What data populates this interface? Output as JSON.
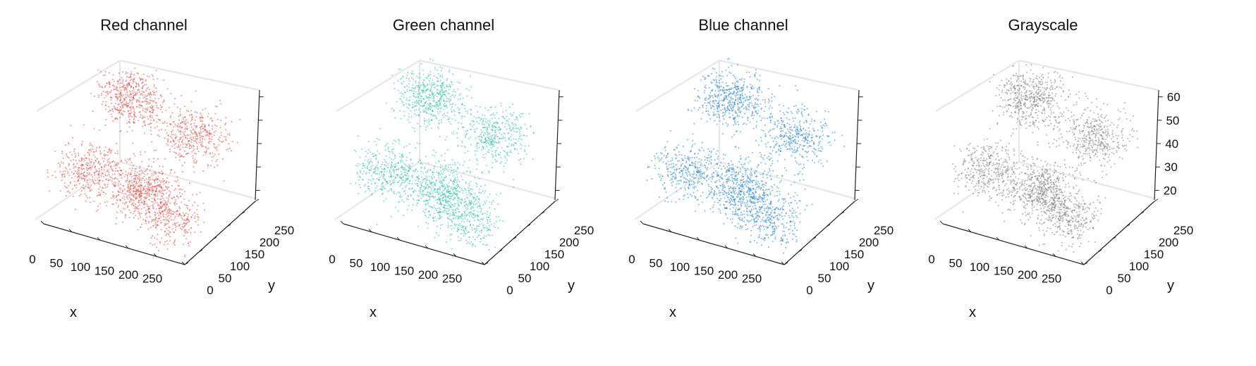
{
  "figure": {
    "panels": [
      {
        "title": "Red channel",
        "color": "#d9534f",
        "xlabel": "x",
        "ylabel": "y",
        "show_z_ticks": false
      },
      {
        "title": "Green channel",
        "color": "#3cbfa8",
        "xlabel": "x",
        "ylabel": "y",
        "show_z_ticks": false
      },
      {
        "title": "Blue channel",
        "color": "#2f86c6",
        "xlabel": "x",
        "ylabel": "y",
        "show_z_ticks": false
      },
      {
        "title": "Grayscale",
        "color": "#808080",
        "xlabel": "x",
        "ylabel": "y",
        "show_z_ticks": true
      }
    ],
    "x_ticks": [
      "0",
      "50",
      "100",
      "150",
      "200",
      "250"
    ],
    "y_ticks": [
      "0",
      "50",
      "100",
      "150",
      "200",
      "250"
    ],
    "z_ticks": [
      "20",
      "30",
      "40",
      "50",
      "60"
    ]
  },
  "chart_data": [
    {
      "type": "scatter",
      "title": "Red channel",
      "xlabel": "x",
      "ylabel": "y",
      "zlabel": "",
      "xlim": [
        0,
        280
      ],
      "ylim": [
        0,
        280
      ],
      "zlim": [
        15,
        62
      ],
      "point_color": "#d9534f",
      "point_count": 4000,
      "clusters": [
        {
          "x": 70,
          "y": 210,
          "z": 52,
          "n": 520
        },
        {
          "x": 200,
          "y": 200,
          "z": 45,
          "n": 420
        },
        {
          "x": 150,
          "y": 90,
          "z": 30,
          "n": 560
        },
        {
          "x": 60,
          "y": 60,
          "z": 35,
          "n": 380
        },
        {
          "x": 230,
          "y": 40,
          "z": 28,
          "n": 340
        }
      ],
      "grid": true
    },
    {
      "type": "scatter",
      "title": "Green channel",
      "xlabel": "x",
      "ylabel": "y",
      "zlabel": "",
      "xlim": [
        0,
        280
      ],
      "ylim": [
        0,
        280
      ],
      "zlim": [
        15,
        62
      ],
      "point_color": "#3cbfa8",
      "point_count": 4000,
      "clusters": [
        {
          "x": 70,
          "y": 210,
          "z": 52,
          "n": 520
        },
        {
          "x": 200,
          "y": 200,
          "z": 45,
          "n": 420
        },
        {
          "x": 150,
          "y": 90,
          "z": 30,
          "n": 560
        },
        {
          "x": 60,
          "y": 60,
          "z": 35,
          "n": 380
        },
        {
          "x": 230,
          "y": 40,
          "z": 28,
          "n": 340
        }
      ],
      "grid": true
    },
    {
      "type": "scatter",
      "title": "Blue channel",
      "xlabel": "x",
      "ylabel": "y",
      "zlabel": "",
      "xlim": [
        0,
        280
      ],
      "ylim": [
        0,
        280
      ],
      "zlim": [
        15,
        62
      ],
      "point_color": "#2f86c6",
      "point_count": 4000,
      "clusters": [
        {
          "x": 70,
          "y": 210,
          "z": 52,
          "n": 520
        },
        {
          "x": 200,
          "y": 200,
          "z": 45,
          "n": 420
        },
        {
          "x": 150,
          "y": 90,
          "z": 30,
          "n": 560
        },
        {
          "x": 60,
          "y": 60,
          "z": 35,
          "n": 380
        },
        {
          "x": 230,
          "y": 40,
          "z": 28,
          "n": 340
        }
      ],
      "grid": true
    },
    {
      "type": "scatter",
      "title": "Grayscale",
      "xlabel": "x",
      "ylabel": "y",
      "zlabel": "",
      "xlim": [
        0,
        280
      ],
      "ylim": [
        0,
        280
      ],
      "zlim": [
        15,
        62
      ],
      "point_color": "#808080",
      "point_count": 4000,
      "clusters": [
        {
          "x": 70,
          "y": 210,
          "z": 52,
          "n": 520
        },
        {
          "x": 200,
          "y": 200,
          "z": 45,
          "n": 420
        },
        {
          "x": 150,
          "y": 90,
          "z": 30,
          "n": 560
        },
        {
          "x": 60,
          "y": 60,
          "z": 35,
          "n": 380
        },
        {
          "x": 230,
          "y": 40,
          "z": 28,
          "n": 340
        }
      ],
      "grid": true
    }
  ]
}
